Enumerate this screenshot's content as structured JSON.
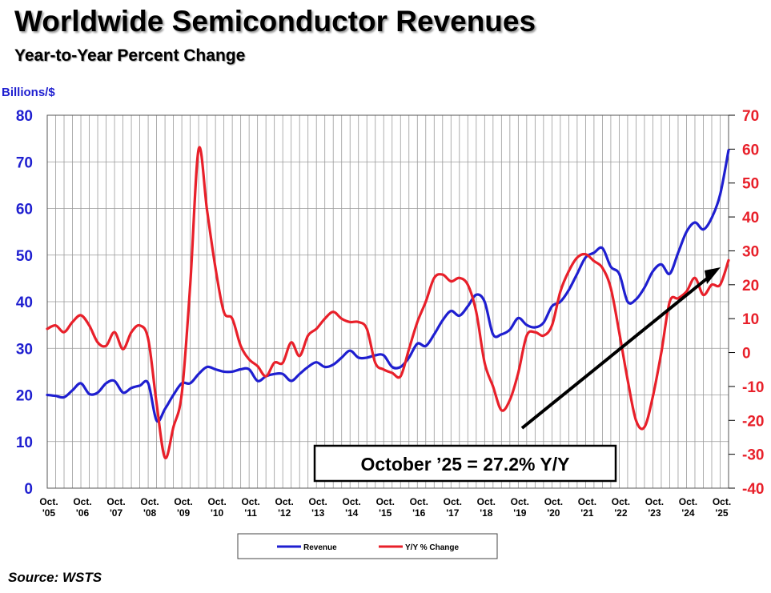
{
  "header": {
    "title": "Worldwide Semiconductor Revenues",
    "subtitle": "Year-to-Year Percent Change"
  },
  "source": "Source: WSTS",
  "annotation": "October ’25 = 27.2% Y/Y",
  "colors": {
    "revenue": "#1f1fd0",
    "yoy": "#e8202a",
    "grid": "#9a9a9a",
    "left_axis": "#1f1fd0",
    "right_axis": "#e8202a"
  },
  "chart_data": {
    "type": "line",
    "ylabel_left": "Billions/$",
    "ylim_left": [
      0,
      80
    ],
    "yticks_left": [
      0,
      10,
      20,
      30,
      40,
      50,
      60,
      70,
      80
    ],
    "ylim_right": [
      -40,
      70
    ],
    "yticks_right": [
      -40,
      -30,
      -20,
      -10,
      0,
      10,
      20,
      30,
      40,
      50,
      60,
      70
    ],
    "grid": true,
    "legend_position": "bottom",
    "x_tick_labels": [
      [
        "Oct.",
        "'05"
      ],
      [
        "Oct.",
        "'06"
      ],
      [
        "Oct.",
        "'07"
      ],
      [
        "Oct.",
        "'08"
      ],
      [
        "Oct.",
        "'09"
      ],
      [
        "Oct.",
        "'10"
      ],
      [
        "Oct.",
        "'11"
      ],
      [
        "Oct.",
        "'12"
      ],
      [
        "Oct.",
        "'13"
      ],
      [
        "Oct.",
        "'14"
      ],
      [
        "Oct.",
        "'15"
      ],
      [
        "Oct.",
        "'16"
      ],
      [
        "Oct.",
        "'17"
      ],
      [
        "Oct.",
        "'18"
      ],
      [
        "Oct.",
        "'19"
      ],
      [
        "Oct.",
        "'20"
      ],
      [
        "Oct.",
        "'21"
      ],
      [
        "Oct.",
        "'22"
      ],
      [
        "Oct.",
        "'23"
      ],
      [
        "Oct.",
        "'24"
      ],
      [
        "Oct.",
        "'25"
      ]
    ],
    "series": [
      {
        "name": "Revenue",
        "axis": "left",
        "points": [
          [
            2005.75,
            20.0
          ],
          [
            2006.0,
            19.8
          ],
          [
            2006.25,
            19.5
          ],
          [
            2006.5,
            21.0
          ],
          [
            2006.75,
            22.5
          ],
          [
            2007.0,
            20.2
          ],
          [
            2007.25,
            20.5
          ],
          [
            2007.5,
            22.5
          ],
          [
            2007.75,
            23.0
          ],
          [
            2008.0,
            20.5
          ],
          [
            2008.25,
            21.5
          ],
          [
            2008.5,
            22.0
          ],
          [
            2008.75,
            22.5
          ],
          [
            2009.0,
            14.5
          ],
          [
            2009.25,
            17.0
          ],
          [
            2009.5,
            20.0
          ],
          [
            2009.75,
            22.5
          ],
          [
            2010.0,
            22.5
          ],
          [
            2010.25,
            24.5
          ],
          [
            2010.5,
            26.0
          ],
          [
            2010.75,
            25.5
          ],
          [
            2011.0,
            25.0
          ],
          [
            2011.25,
            25.0
          ],
          [
            2011.5,
            25.5
          ],
          [
            2011.75,
            25.5
          ],
          [
            2012.0,
            23.0
          ],
          [
            2012.25,
            24.0
          ],
          [
            2012.5,
            24.5
          ],
          [
            2012.75,
            24.5
          ],
          [
            2013.0,
            23.0
          ],
          [
            2013.25,
            24.5
          ],
          [
            2013.5,
            26.0
          ],
          [
            2013.75,
            27.0
          ],
          [
            2014.0,
            26.0
          ],
          [
            2014.25,
            26.5
          ],
          [
            2014.5,
            28.0
          ],
          [
            2014.75,
            29.5
          ],
          [
            2015.0,
            28.0
          ],
          [
            2015.25,
            28.0
          ],
          [
            2015.5,
            28.5
          ],
          [
            2015.75,
            28.5
          ],
          [
            2016.0,
            26.0
          ],
          [
            2016.25,
            26.0
          ],
          [
            2016.5,
            28.0
          ],
          [
            2016.75,
            31.0
          ],
          [
            2017.0,
            30.5
          ],
          [
            2017.25,
            33.0
          ],
          [
            2017.5,
            36.0
          ],
          [
            2017.75,
            38.0
          ],
          [
            2018.0,
            37.0
          ],
          [
            2018.25,
            39.0
          ],
          [
            2018.5,
            41.5
          ],
          [
            2018.75,
            40.0
          ],
          [
            2019.0,
            33.0
          ],
          [
            2019.25,
            33.0
          ],
          [
            2019.5,
            34.0
          ],
          [
            2019.75,
            36.5
          ],
          [
            2020.0,
            35.0
          ],
          [
            2020.25,
            34.5
          ],
          [
            2020.5,
            35.5
          ],
          [
            2020.75,
            39.0
          ],
          [
            2021.0,
            40.0
          ],
          [
            2021.25,
            42.5
          ],
          [
            2021.5,
            46.0
          ],
          [
            2021.75,
            49.5
          ],
          [
            2022.0,
            50.5
          ],
          [
            2022.25,
            51.5
          ],
          [
            2022.5,
            47.5
          ],
          [
            2022.75,
            46.0
          ],
          [
            2023.0,
            40.0
          ],
          [
            2023.25,
            40.5
          ],
          [
            2023.5,
            43.0
          ],
          [
            2023.75,
            46.5
          ],
          [
            2024.0,
            48.0
          ],
          [
            2024.25,
            46.0
          ],
          [
            2024.5,
            50.5
          ],
          [
            2024.75,
            55.0
          ],
          [
            2025.0,
            57.0
          ],
          [
            2025.25,
            55.5
          ],
          [
            2025.5,
            58.0
          ],
          [
            2025.75,
            63.0
          ],
          [
            2026.0,
            72.5
          ]
        ]
      },
      {
        "name": "Y/Y % Change",
        "axis": "right",
        "points": [
          [
            2005.75,
            7.0
          ],
          [
            2006.0,
            8.0
          ],
          [
            2006.25,
            6.0
          ],
          [
            2006.5,
            9.0
          ],
          [
            2006.75,
            11.0
          ],
          [
            2007.0,
            8.0
          ],
          [
            2007.25,
            3.0
          ],
          [
            2007.5,
            2.0
          ],
          [
            2007.75,
            6.0
          ],
          [
            2008.0,
            1.0
          ],
          [
            2008.25,
            6.0
          ],
          [
            2008.5,
            8.0
          ],
          [
            2008.75,
            4.0
          ],
          [
            2009.0,
            -15.0
          ],
          [
            2009.25,
            -31.0
          ],
          [
            2009.5,
            -22.0
          ],
          [
            2009.75,
            -12.0
          ],
          [
            2010.0,
            20.0
          ],
          [
            2010.25,
            60.0
          ],
          [
            2010.5,
            42.0
          ],
          [
            2010.75,
            25.0
          ],
          [
            2011.0,
            12.0
          ],
          [
            2011.25,
            10.0
          ],
          [
            2011.5,
            2.0
          ],
          [
            2011.75,
            -2.0
          ],
          [
            2012.0,
            -4.0
          ],
          [
            2012.25,
            -7.0
          ],
          [
            2012.5,
            -3.0
          ],
          [
            2012.75,
            -3.0
          ],
          [
            2013.0,
            3.0
          ],
          [
            2013.25,
            -1.0
          ],
          [
            2013.5,
            5.0
          ],
          [
            2013.75,
            7.0
          ],
          [
            2014.0,
            10.0
          ],
          [
            2014.25,
            12.0
          ],
          [
            2014.5,
            10.0
          ],
          [
            2014.75,
            9.0
          ],
          [
            2015.0,
            9.0
          ],
          [
            2015.25,
            7.0
          ],
          [
            2015.5,
            -3.0
          ],
          [
            2015.75,
            -5.0
          ],
          [
            2016.0,
            -6.0
          ],
          [
            2016.25,
            -7.0
          ],
          [
            2016.5,
            1.0
          ],
          [
            2016.75,
            9.0
          ],
          [
            2017.0,
            15.0
          ],
          [
            2017.25,
            22.0
          ],
          [
            2017.5,
            23.0
          ],
          [
            2017.75,
            21.0
          ],
          [
            2018.0,
            22.0
          ],
          [
            2018.25,
            20.0
          ],
          [
            2018.5,
            12.0
          ],
          [
            2018.75,
            -3.0
          ],
          [
            2019.0,
            -10.0
          ],
          [
            2019.25,
            -17.0
          ],
          [
            2019.5,
            -14.0
          ],
          [
            2019.75,
            -6.0
          ],
          [
            2020.0,
            5.0
          ],
          [
            2020.25,
            6.0
          ],
          [
            2020.5,
            5.0
          ],
          [
            2020.75,
            8.0
          ],
          [
            2021.0,
            18.0
          ],
          [
            2021.25,
            24.0
          ],
          [
            2021.5,
            28.0
          ],
          [
            2021.75,
            29.0
          ],
          [
            2022.0,
            27.0
          ],
          [
            2022.25,
            25.0
          ],
          [
            2022.5,
            19.0
          ],
          [
            2022.75,
            6.0
          ],
          [
            2023.0,
            -8.0
          ],
          [
            2023.25,
            -20.0
          ],
          [
            2023.5,
            -22.0
          ],
          [
            2023.75,
            -13.0
          ],
          [
            2024.0,
            0.0
          ],
          [
            2024.25,
            15.0
          ],
          [
            2024.5,
            16.0
          ],
          [
            2024.75,
            18.0
          ],
          [
            2025.0,
            22.0
          ],
          [
            2025.25,
            17.0
          ],
          [
            2025.5,
            20.0
          ],
          [
            2025.75,
            20.0
          ],
          [
            2026.0,
            27.2
          ]
        ]
      }
    ]
  }
}
